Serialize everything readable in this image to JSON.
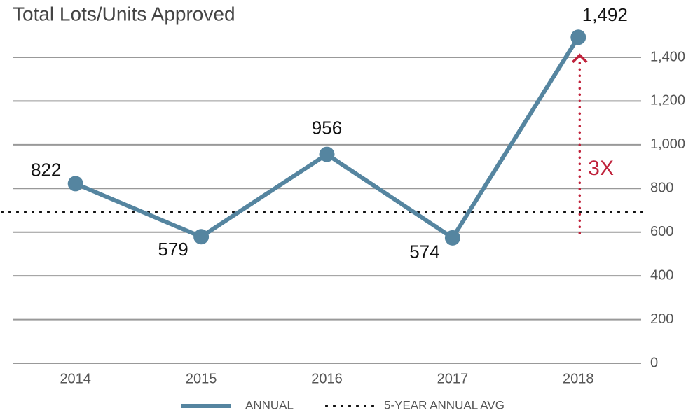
{
  "chart_data": {
    "type": "line",
    "title": "Total Lots/Units Approved",
    "categories": [
      "2014",
      "2015",
      "2016",
      "2017",
      "2018"
    ],
    "series": [
      {
        "name": "ANNUAL",
        "color": "#5585a0",
        "values": [
          822,
          579,
          956,
          574,
          1492
        ],
        "value_labels": [
          "822",
          "579",
          "956",
          "574",
          "1,492"
        ]
      }
    ],
    "reference_lines": [
      {
        "name": "5-YEAR ANNUAL AVG",
        "value": 692,
        "color": "#111111"
      }
    ],
    "annotations": [
      {
        "text": "3X",
        "from": 595,
        "to": 1410,
        "color": "#c0223b"
      }
    ],
    "ylim": [
      0,
      1400
    ],
    "yticks": [
      0,
      200,
      400,
      600,
      800,
      {
        "value": 1000,
        "label": "1,000"
      },
      {
        "value": 1200,
        "label": "1,200"
      },
      {
        "value": 1400,
        "label": "1,400"
      }
    ],
    "grid": true,
    "legend": "bottom"
  }
}
